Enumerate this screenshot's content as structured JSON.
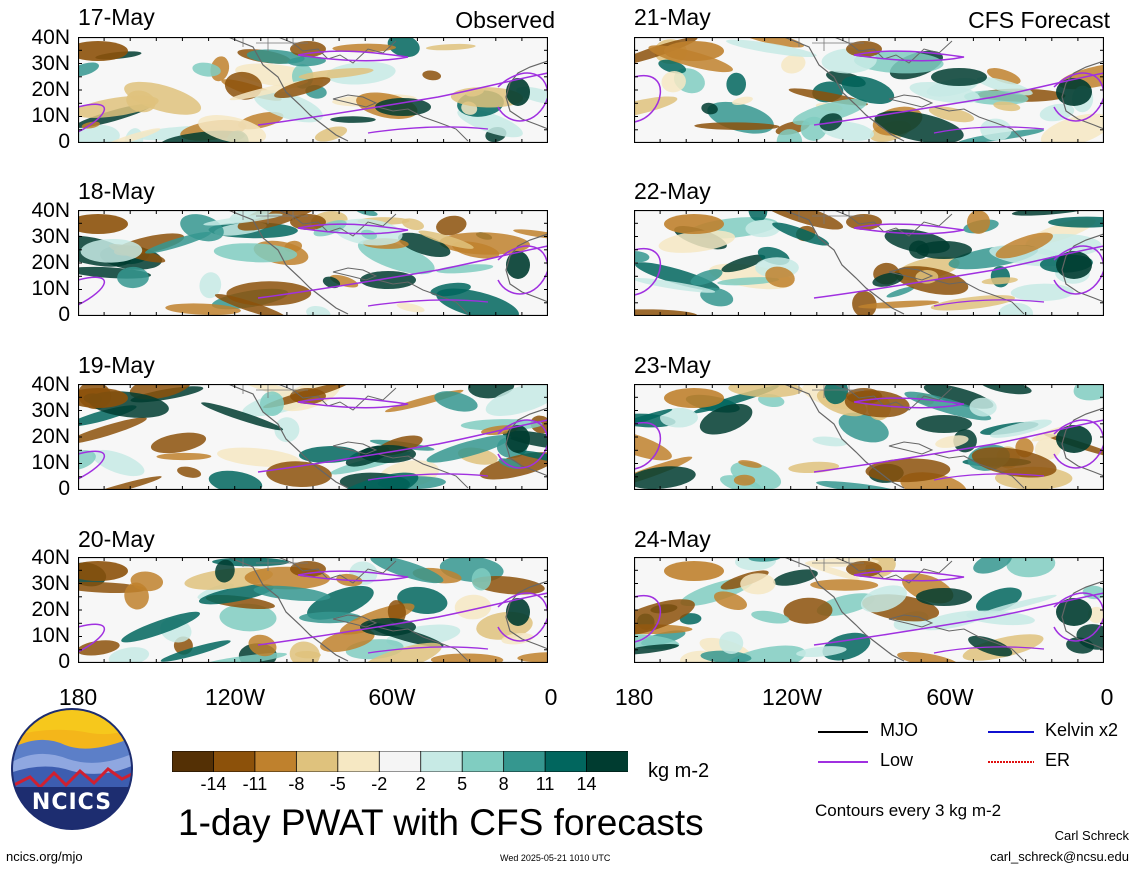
{
  "panels_left": [
    {
      "date": "17-May",
      "tag": "Observed"
    },
    {
      "date": "18-May",
      "tag": ""
    },
    {
      "date": "19-May",
      "tag": ""
    },
    {
      "date": "20-May",
      "tag": ""
    }
  ],
  "panels_right": [
    {
      "date": "21-May",
      "tag": "CFS Forecast"
    },
    {
      "date": "22-May",
      "tag": ""
    },
    {
      "date": "23-May",
      "tag": ""
    },
    {
      "date": "24-May",
      "tag": ""
    }
  ],
  "y_ticks": [
    "40N",
    "30N",
    "20N",
    "10N",
    "0"
  ],
  "x_ticks": [
    "180",
    "120W",
    "60W",
    "0"
  ],
  "legend": {
    "items": [
      {
        "label": "MJO",
        "color": "#000000"
      },
      {
        "label": "Kelvin x2",
        "color": "#1010d0"
      },
      {
        "label": "Low",
        "color": "#a030e0"
      },
      {
        "label": "ER",
        "color": "#e01010"
      }
    ],
    "contour_note": "Contours every 3 kg m-2"
  },
  "colorbar": {
    "unit": "kg m-2",
    "labels": [
      "-14",
      "-11",
      "-8",
      "-5",
      "-2",
      "2",
      "5",
      "8",
      "11",
      "14"
    ],
    "colors": [
      "#543005",
      "#8c510a",
      "#bf812d",
      "#dfc27d",
      "#f6e8c3",
      "#f5f5f5",
      "#c7eae5",
      "#80cdc1",
      "#35978f",
      "#01665e",
      "#003c30"
    ]
  },
  "title": "1-day PWAT with CFS forecasts",
  "logo_text": "NCICS",
  "footer": {
    "url": "ncics.org/mjo",
    "timestamp": "Wed 2025-05-21 1010 UTC",
    "author": "Carl Schreck",
    "email": "carl_schreck@ncsu.edu"
  }
}
